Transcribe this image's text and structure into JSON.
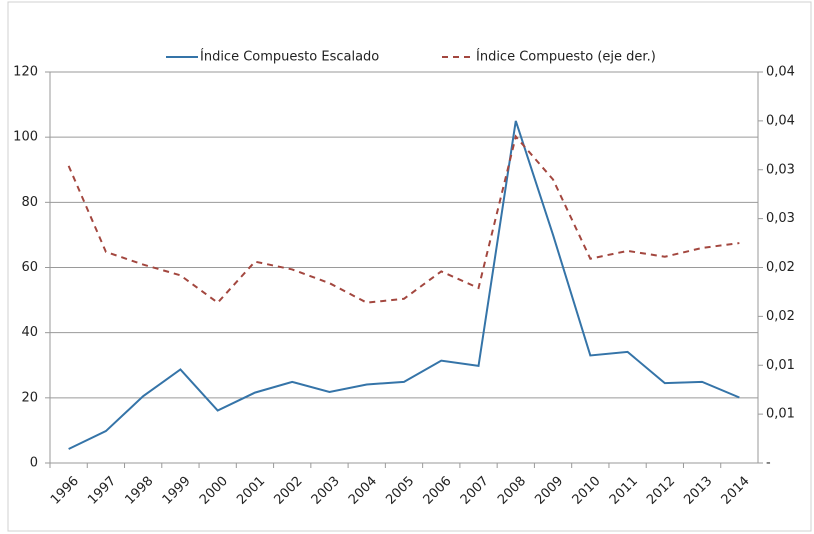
{
  "chart_data": {
    "type": "line",
    "categories": [
      "1996",
      "1997",
      "1998",
      "1999",
      "2000",
      "2001",
      "2002",
      "2003",
      "2004",
      "2005",
      "2006",
      "2007",
      "2008",
      "2009",
      "2010",
      "2011",
      "2012",
      "2013",
      "2014"
    ],
    "series": [
      {
        "name": "Índice Compuesto Escalado",
        "color": "#3574a8",
        "dash": false,
        "values": [
          4.3,
          9.8,
          20.5,
          28.7,
          16.1,
          21.6,
          24.9,
          21.8,
          24.1,
          24.9,
          31.4,
          29.8,
          105,
          70,
          33,
          34.1,
          24.5,
          24.9,
          20.1
        ]
      },
      {
        "name": "Índice Compuesto (eje der.)",
        "color": "#a3473f",
        "dash": true,
        "axis": "y2",
        "values": [
          0.0304,
          0.0216,
          0.0203,
          0.0192,
          0.0164,
          0.0206,
          0.0198,
          0.0184,
          0.0164,
          0.0168,
          0.0196,
          0.0179,
          0.0334,
          0.029,
          0.0209,
          0.0217,
          0.0211,
          0.022,
          0.0225
        ]
      }
    ],
    "ylim": [
      0,
      120
    ],
    "yticks": [
      0,
      20,
      40,
      60,
      80,
      100,
      120
    ],
    "y2lim": [
      0,
      0.04
    ],
    "y2ticks": [
      {
        "value": 0,
        "label": "-"
      },
      {
        "value": 0.005,
        "label": "0,01"
      },
      {
        "value": 0.01,
        "label": "0,01"
      },
      {
        "value": 0.015,
        "label": "0,02"
      },
      {
        "value": 0.02,
        "label": "0,02"
      },
      {
        "value": 0.025,
        "label": "0,03"
      },
      {
        "value": 0.03,
        "label": "0,03"
      },
      {
        "value": 0.035,
        "label": "0,04"
      },
      {
        "value": 0.04,
        "label": "0,04"
      }
    ],
    "grid": true,
    "legend": "top"
  }
}
